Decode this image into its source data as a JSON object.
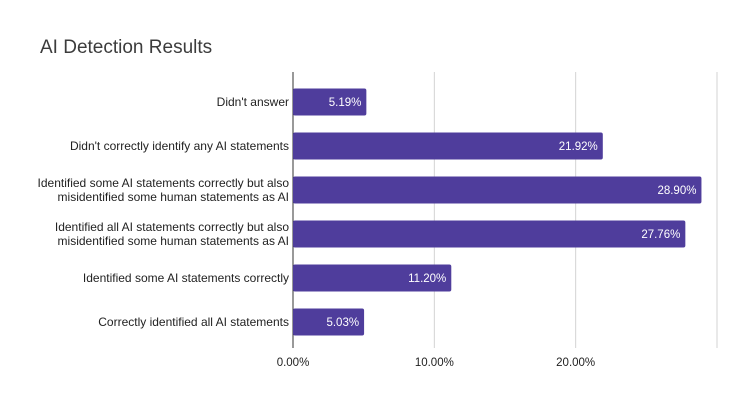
{
  "chart_data": {
    "type": "bar",
    "orientation": "horizontal",
    "title": "AI Detection Results",
    "categories": [
      [
        "Didn't answer"
      ],
      [
        "Didn't correctly identify any AI statements"
      ],
      [
        "Identified some AI statements correctly but also",
        "misidentified some human statements as AI"
      ],
      [
        "Identified all AI statements correctly but also",
        "misidentified some human statements as AI"
      ],
      [
        "Identified some AI statements correctly"
      ],
      [
        "Correctly identified all AI statements"
      ]
    ],
    "values": [
      5.19,
      21.92,
      28.9,
      27.76,
      11.2,
      5.03
    ],
    "data_labels": [
      "5.19%",
      "21.92%",
      "28.90%",
      "27.76%",
      "11.20%",
      "5.03%"
    ],
    "xlim": [
      0,
      30
    ],
    "xticks": [
      0,
      10,
      20,
      30
    ],
    "xtick_labels": [
      "0.00%",
      "10.00%",
      "20.00%",
      ""
    ],
    "grid": true,
    "legend": "none",
    "colors": {
      "bar": "#4f3d9c",
      "grid": "#d3d3d3",
      "axis": "#333333"
    }
  }
}
